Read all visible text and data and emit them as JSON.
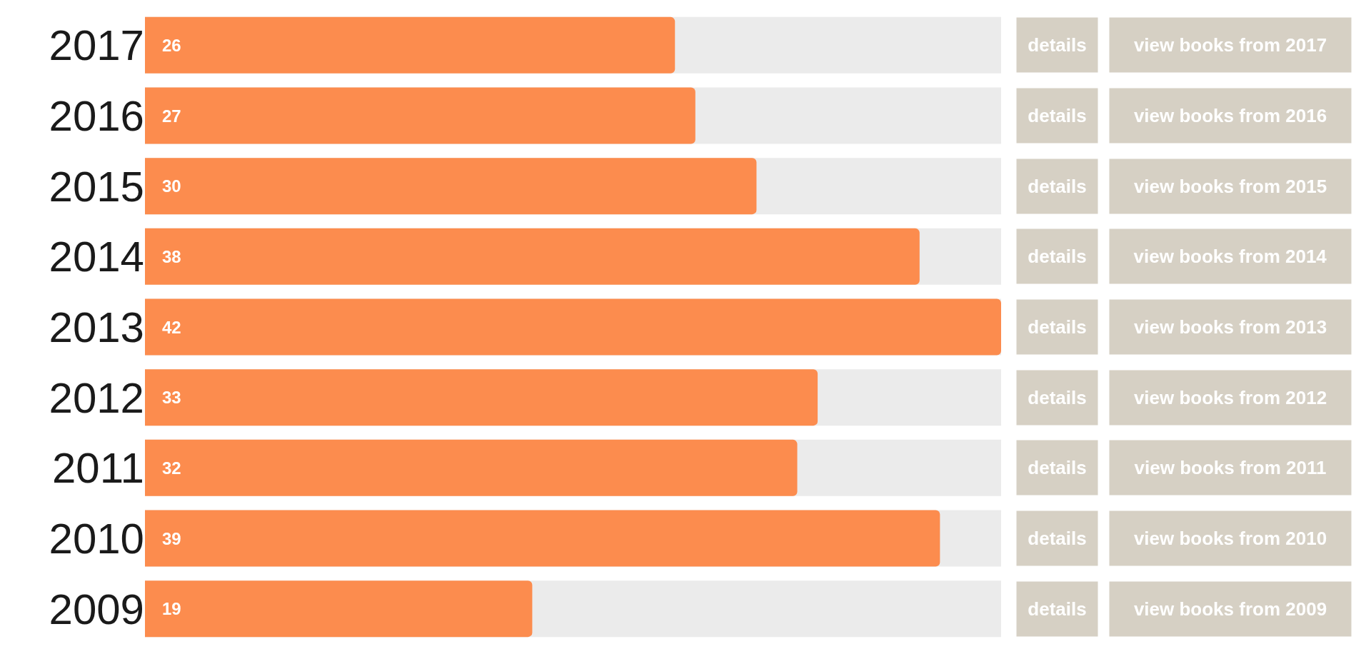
{
  "chart_data": {
    "type": "bar",
    "orientation": "horizontal",
    "categories": [
      "2017",
      "2016",
      "2015",
      "2014",
      "2013",
      "2012",
      "2011",
      "2010",
      "2009"
    ],
    "values": [
      26,
      27,
      30,
      38,
      42,
      33,
      32,
      39,
      19
    ],
    "color": "#fc8c4e",
    "xlim": [
      0,
      42
    ],
    "data_labels": true,
    "grid": false,
    "legend": false,
    "tick_labels": "y",
    "annotations": [
      "details",
      "view books from 2017",
      "details",
      "view books from 2016",
      "details",
      "view books from 2015",
      "details",
      "view books from 2014",
      "details",
      "view books from 2013",
      "details",
      "view books from 2012",
      "details",
      "view books from 2011",
      "details",
      "view books from 2010",
      "details",
      "view books from 2009"
    ]
  }
}
